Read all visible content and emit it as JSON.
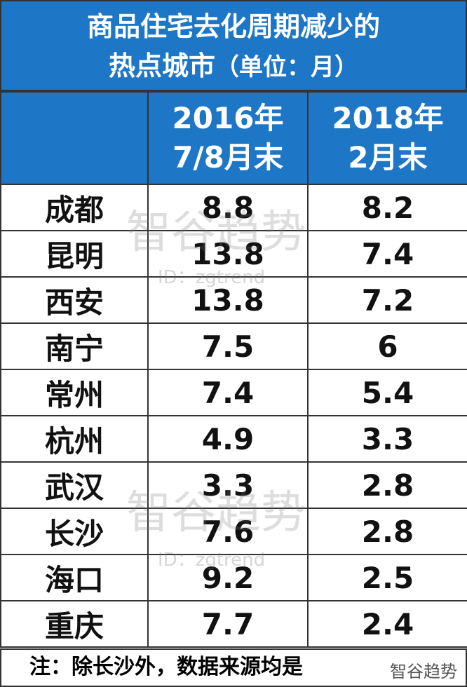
{
  "title": {
    "line1": "商品住宅去化周期减少的",
    "line2": "热点城市",
    "unit": "（单位：月）"
  },
  "table": {
    "header": [
      null,
      [
        "2016年",
        "7/8月末"
      ],
      [
        "2018年",
        "2月末"
      ]
    ],
    "rows": [
      [
        "成都",
        8.8,
        8.2
      ],
      [
        "昆明",
        13.8,
        7.4
      ],
      [
        "西安",
        13.8,
        7.2
      ],
      [
        "南宁",
        7.5,
        6
      ],
      [
        "常州",
        7.4,
        5.4
      ],
      [
        "杭州",
        4.9,
        3.3
      ],
      [
        "武汉",
        3.3,
        2.8
      ],
      [
        "长沙",
        7.6,
        2.8
      ],
      [
        "海口",
        9.2,
        2.5
      ],
      [
        "重庆",
        7.7,
        2.4
      ]
    ]
  },
  "note": "注：除长沙外，数据来源均是",
  "watermark": {
    "name": "智谷趋势",
    "id": "ID：zgtrend"
  }
}
